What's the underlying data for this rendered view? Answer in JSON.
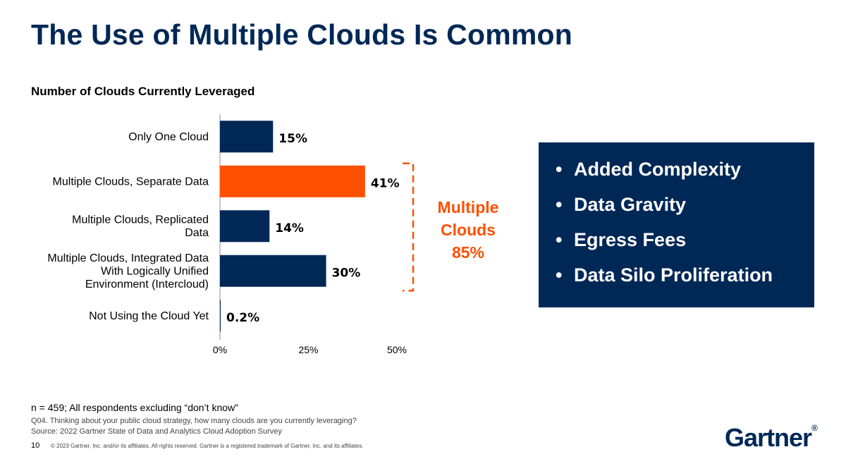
{
  "slide": {
    "title": "The Use of Multiple Clouds Is Common",
    "page_number": "10",
    "copyright": "© 2023 Gartner, Inc. and/or its affiliates. All rights reserved. Gartner is a registered trademark of Gartner, Inc. and its affiliates.",
    "logo_text": "Gartner",
    "logo_mark": "®"
  },
  "chart_data": {
    "type": "bar",
    "orientation": "horizontal",
    "title": "Number of Clouds Currently Leveraged",
    "categories": [
      [
        "Only One Cloud"
      ],
      [
        "Multiple Clouds, Separate Data"
      ],
      [
        "Multiple Clouds, Replicated",
        "Data"
      ],
      [
        "Multiple Clouds, Integrated Data",
        "With Logically Unified",
        "Environment (Intercloud)"
      ],
      [
        "Not Using the Cloud Yet"
      ]
    ],
    "values": [
      15,
      41,
      14,
      30,
      0.2
    ],
    "value_labels": [
      "15%",
      "41%",
      "14%",
      "30%",
      "0.2%"
    ],
    "bar_colors": [
      "#002856",
      "#fe5000",
      "#002856",
      "#002856",
      "#002856"
    ],
    "xlim": [
      0,
      50
    ],
    "x_ticks": [
      0,
      25,
      50
    ],
    "x_tick_labels": [
      "0%",
      "25%",
      "50%"
    ],
    "grid": false,
    "bracket_group": [
      1,
      2,
      3
    ]
  },
  "callout": {
    "lines": [
      "Multiple",
      "Clouds",
      "85%"
    ],
    "color": "#fe5000"
  },
  "info_box": {
    "bullet": "•",
    "items": [
      "Added Complexity",
      "Data Gravity",
      "Egress Fees",
      "Data Silo Proliferation"
    ],
    "background": "#002856"
  },
  "footer": {
    "note": "n = 459; All respondents excluding “don’t know”",
    "question": "Q04. Thinking about your public cloud strategy, how many clouds are you currently leveraging?",
    "source": "Source: 2022 Gartner State of Data and Analytics Cloud Adoption Survey"
  }
}
